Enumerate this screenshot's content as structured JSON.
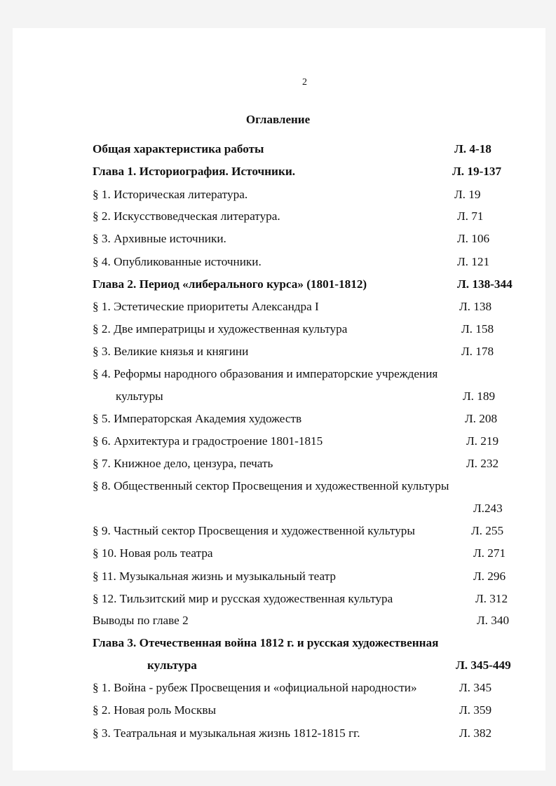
{
  "page_number": "2",
  "title": "Оглавление",
  "entries": [
    {
      "text": "Общая характеристика работы",
      "page": "Л. 4-18"
    },
    {
      "text": "Глава 1. Историография. Источники.",
      "page": "Л. 19-137"
    },
    {
      "text": "§ 1. Историческая литература.",
      "page": "Л. 19"
    },
    {
      "text": "§ 2. Искусствоведческая литература.",
      "page": "Л. 71"
    },
    {
      "text": "§ 3. Архивные источники.",
      "page": "Л. 106"
    },
    {
      "text": "§ 4. Опубликованные источники.",
      "page": "Л. 121"
    },
    {
      "text": "Глава 2. Период «либерального курса» (1801-1812)",
      "page": "Л. 138-344"
    },
    {
      "text": "§ 1. Эстетические приоритеты Александра I",
      "page": "Л. 138"
    },
    {
      "text": "§ 2. Две императрицы и художественная культура",
      "page": "Л. 158"
    },
    {
      "text": "§ 3. Великие князья и княгини",
      "page": "Л. 178"
    },
    {
      "text": "§ 4. Реформы народного образования и императорские учреждения",
      "text2": "культуры",
      "page": "Л. 189"
    },
    {
      "text": "§ 5. Императорская Академия художеств",
      "page": "Л. 208"
    },
    {
      "text": "§ 6. Архитектура и градостроение 1801-1815",
      "page": "Л. 219"
    },
    {
      "text": "§ 7. Книжное дело, цензура, печать",
      "page": "Л. 232"
    },
    {
      "text": "§ 8. Общественный сектор Просвещения и художественной культуры",
      "page": "Л.243"
    },
    {
      "text": "§ 9. Частный сектор Просвещения и художественной культуры",
      "page": "Л. 255"
    },
    {
      "text": "§ 10. Новая роль театра",
      "page": "Л. 271"
    },
    {
      "text": "§ 11. Музыкальная жизнь и музыкальный театр",
      "page": "Л. 296"
    },
    {
      "text": "§ 12. Тильзитский мир и русская художественная культура",
      "page": "Л. 312"
    },
    {
      "text": "Выводы по главе 2",
      "page": "Л. 340"
    },
    {
      "text": "Глава 3. Отечественная война 1812 г. и русская художественная",
      "text2": "культура",
      "page": "Л. 345-449"
    },
    {
      "text": "§ 1. Война - рубеж Просвещения и «официальной народности»",
      "page": "Л. 345"
    },
    {
      "text": "§ 2. Новая роль Москвы",
      "page": "Л. 359"
    },
    {
      "text": "§ 3. Театральная и музыкальная жизнь 1812-1815 гг.",
      "page": "Л. 382"
    }
  ]
}
